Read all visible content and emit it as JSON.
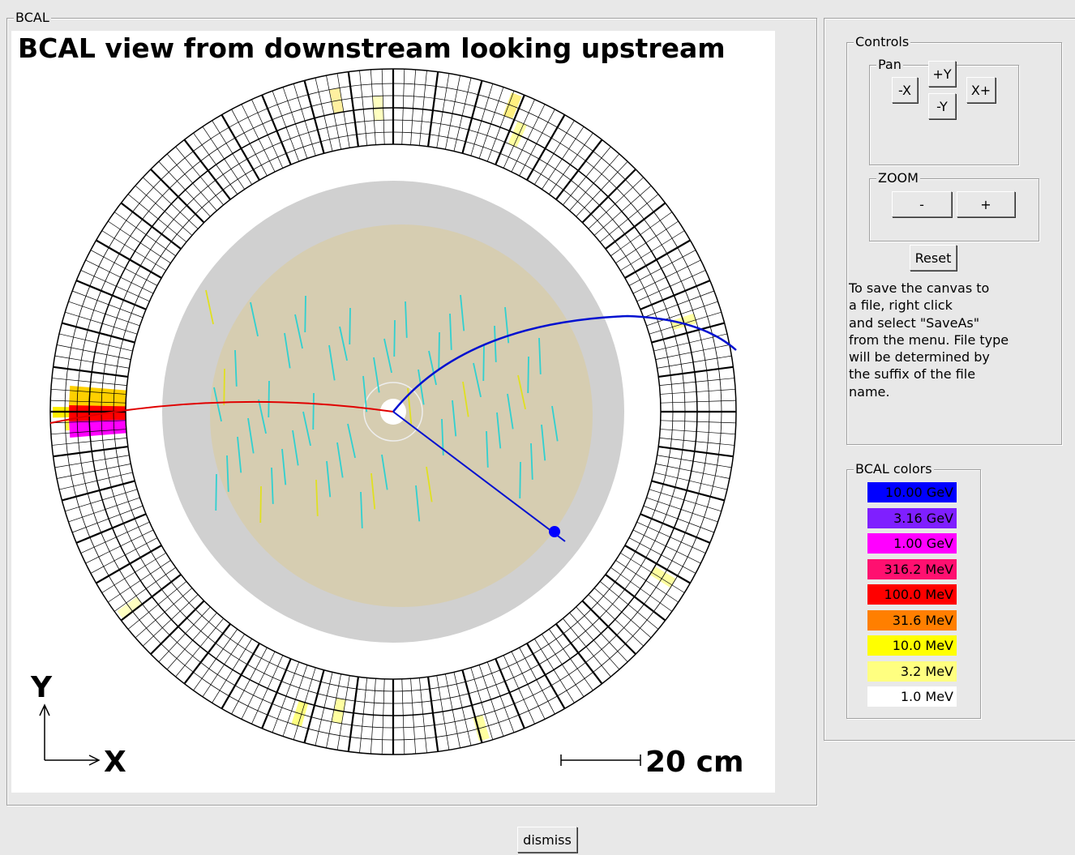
{
  "window": {
    "frame_title": "BCAL",
    "canvas": {
      "title": "BCAL view from downstream looking upstream",
      "axis_y": "Y",
      "axis_x": "X",
      "scale": "20 cm"
    },
    "dismiss": "dismiss"
  },
  "controls": {
    "title": "Controls",
    "pan": {
      "title": "Pan",
      "up": "+Y",
      "left": "-X",
      "right": "X+",
      "down": "-Y"
    },
    "zoom": {
      "title": "ZOOM",
      "out": "-",
      "in": "+"
    },
    "reset": "Reset",
    "help": [
      "To save the canvas to",
      "a file, right click",
      "and select \"SaveAs\"",
      "from the menu. File type",
      "will be determined by",
      "the suffix of the file",
      "name."
    ]
  },
  "legend": {
    "title": "BCAL colors",
    "entries": [
      {
        "label": "10.00 GeV",
        "color": "#0000ff"
      },
      {
        "label": "3.16 GeV",
        "color": "#7f1fff"
      },
      {
        "label": "1.00 GeV",
        "color": "#ff00ff"
      },
      {
        "label": "316.2 MeV",
        "color": "#ff1070"
      },
      {
        "label": "100.0 MeV",
        "color": "#ff0000"
      },
      {
        "label": "31.6 MeV",
        "color": "#ff7f00"
      },
      {
        "label": "10.0 MeV",
        "color": "#ffff00"
      },
      {
        "label": "3.2 MeV",
        "color": "#ffff80"
      },
      {
        "label": "1.0 MeV",
        "color": "#ffffff"
      }
    ]
  }
}
